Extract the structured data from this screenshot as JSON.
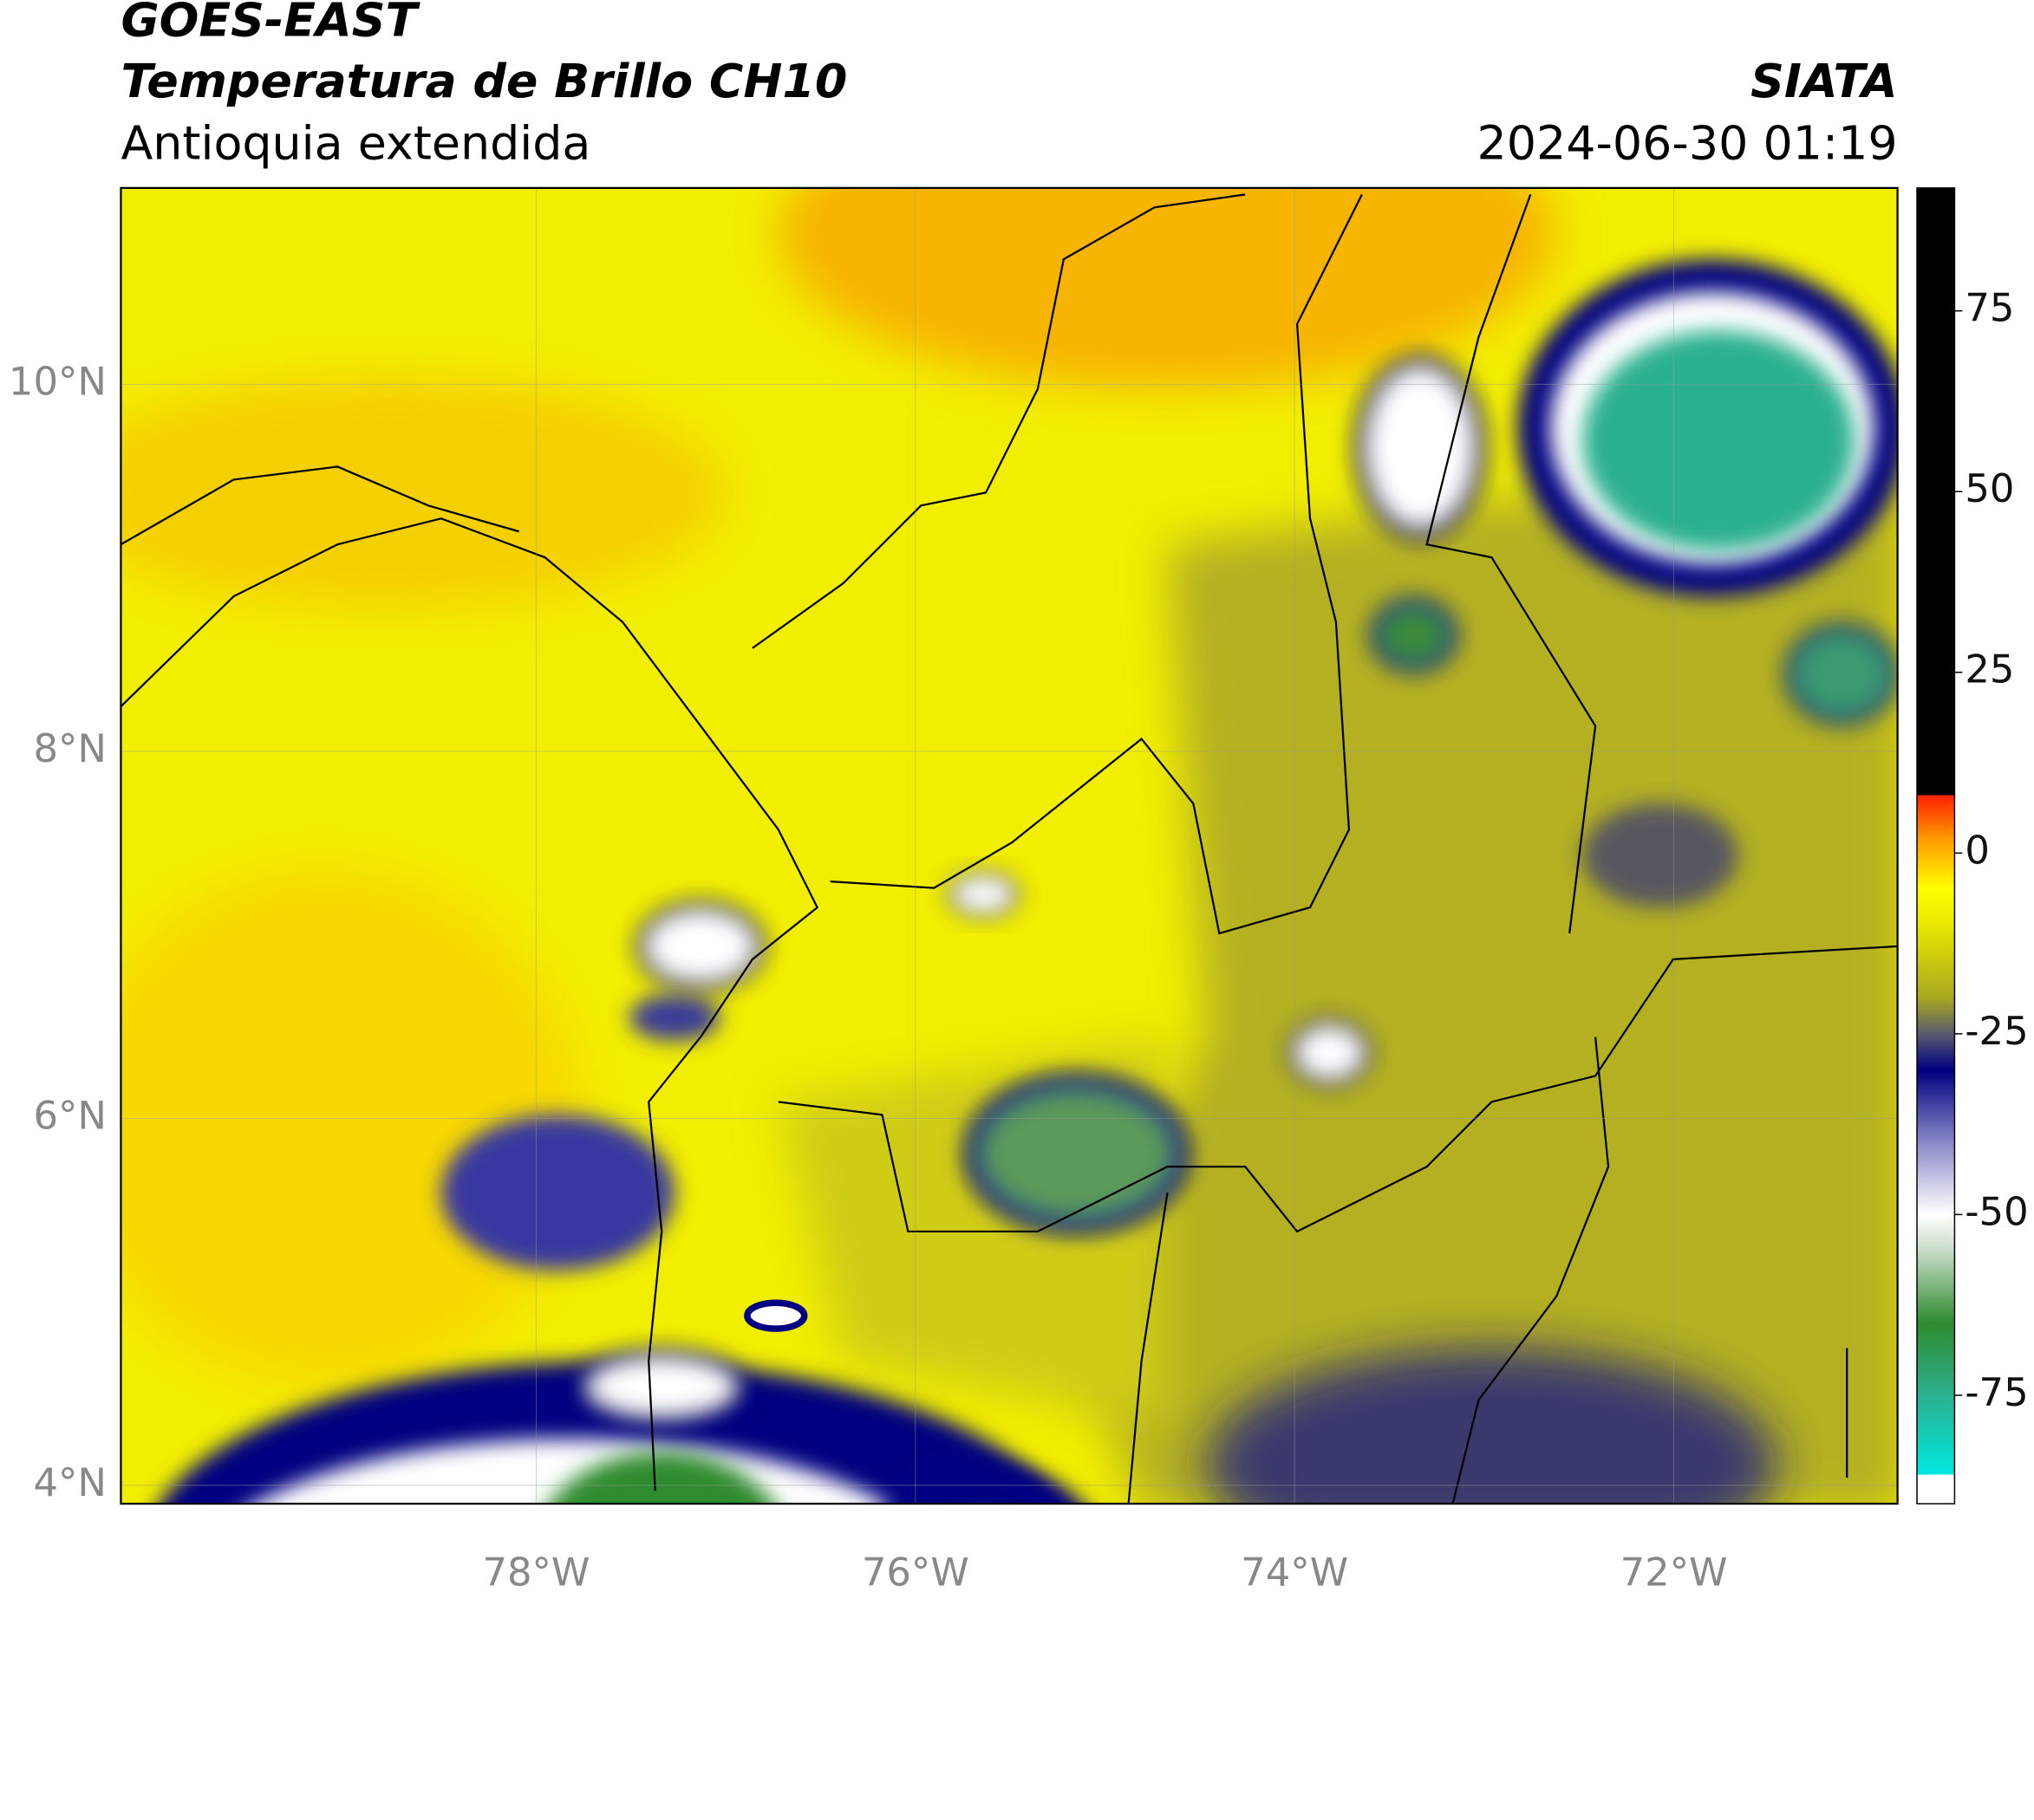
{
  "header": {
    "title": "GOES-EAST",
    "subtitle": "Temperatura de Brillo CH10",
    "region": "Antioquia extendida",
    "source": "SIATA",
    "timestamp": "2024-06-30 01:19"
  },
  "map": {
    "xlim": [
      -80.19,
      -70.82
    ],
    "ylim": [
      3.9,
      11.07
    ],
    "grid": true,
    "xticks": [
      {
        "value": -78,
        "label": "78°W"
      },
      {
        "value": -76,
        "label": "76°W"
      },
      {
        "value": -74,
        "label": "74°W"
      },
      {
        "value": -72,
        "label": "72°W"
      }
    ],
    "yticks": [
      {
        "value": 4,
        "label": "4°N"
      },
      {
        "value": 6,
        "label": "6°N"
      },
      {
        "value": 8,
        "label": "8°N"
      },
      {
        "value": 10,
        "label": "10°N"
      }
    ]
  },
  "colorbar": {
    "lim": [
      -90,
      92
    ],
    "ticks": [
      -75,
      -50,
      -25,
      0,
      25,
      50,
      75
    ],
    "stops": [
      [
        -90,
        "#ffffff"
      ],
      [
        -86,
        "#ffffff"
      ],
      [
        -86,
        "#00e8e0"
      ],
      [
        -75,
        "#2bb08f"
      ],
      [
        -65,
        "#2e8b2e"
      ],
      [
        -55,
        "#c8dcc8"
      ],
      [
        -50,
        "#ffffff"
      ],
      [
        -40,
        "#8888c8"
      ],
      [
        -30,
        "#000080"
      ],
      [
        -25,
        "#5a5a70"
      ],
      [
        -20,
        "#a8a820"
      ],
      [
        -10,
        "#e8e800"
      ],
      [
        -5,
        "#ffff00"
      ],
      [
        2,
        "#ff9900"
      ],
      [
        8,
        "#ff2000"
      ],
      [
        8,
        "#000000"
      ],
      [
        92,
        "#000000"
      ]
    ]
  }
}
